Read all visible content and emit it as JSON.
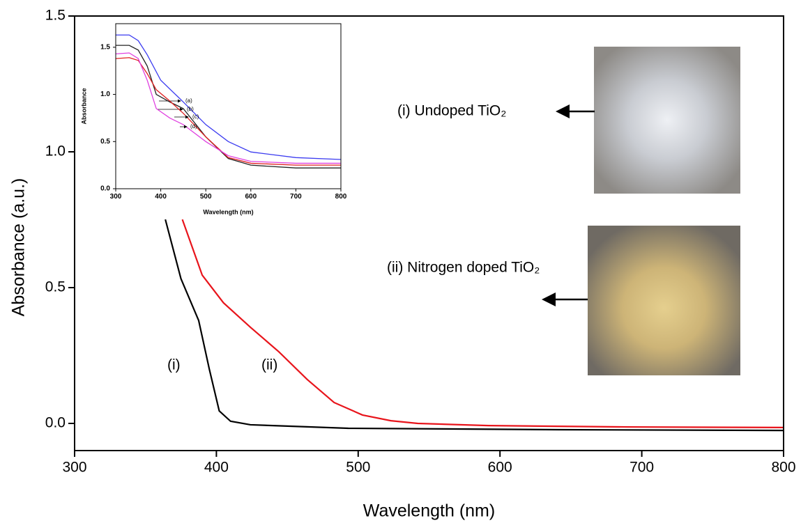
{
  "chart_data": [
    {
      "type": "line",
      "xlabel": "Wavelength (nm)",
      "ylabel": "Absorbance (a.u.)",
      "xlim": [
        300,
        800
      ],
      "ylim": [
        -0.1,
        1.5
      ],
      "xticks": [
        300,
        400,
        500,
        600,
        700,
        800
      ],
      "yticks": [
        {
          "value": 0,
          "label": "0.0"
        },
        0.5,
        {
          "value": 1,
          "label": "1.0"
        },
        {
          "value": 1.5,
          "label": "1.5"
        }
      ],
      "annotations": [
        "(i) Undoped TiO₂",
        "(ii) Nitrogen doped TiO₂"
      ],
      "series": [
        {
          "name": "(i)",
          "color": "#000000",
          "x": [
            364,
            375,
            387.5,
            395,
            402,
            410,
            424,
            493,
            641,
            800
          ],
          "values": [
            0.751,
            0.533,
            0.379,
            0.2,
            0.046,
            0.008,
            -0.005,
            -0.018,
            -0.023,
            -0.026
          ]
        },
        {
          "name": "(ii)",
          "color": "#e8141b",
          "x": [
            376,
            390,
            405,
            424,
            444,
            464,
            483,
            503,
            523,
            542,
            592,
            690,
            800
          ],
          "values": [
            0.751,
            0.546,
            0.444,
            0.354,
            0.264,
            0.162,
            0.077,
            0.031,
            0.01,
            0,
            -0.008,
            -0.013,
            -0.015
          ]
        }
      ]
    },
    {
      "type": "line",
      "xlabel": "Wavelength (nm)",
      "ylabel": "Absorbance",
      "xlim": [
        300,
        800
      ],
      "ylim": [
        0,
        1.75
      ],
      "xticks": [
        300,
        400,
        500,
        600,
        700,
        800
      ],
      "yticks": [
        {
          "value": 0,
          "label": "0.0"
        },
        0.5,
        {
          "value": 1,
          "label": "1.0"
        },
        {
          "value": 1.5,
          "label": "1.5"
        }
      ],
      "series": [
        {
          "name": "(a)",
          "color": "#3b3bf0",
          "x": [
            300,
            330,
            350,
            370,
            400,
            450,
            500,
            550,
            600,
            700,
            800
          ],
          "values": [
            1.63,
            1.63,
            1.57,
            1.42,
            1.15,
            0.92,
            0.68,
            0.5,
            0.39,
            0.33,
            0.31
          ]
        },
        {
          "name": "(b)",
          "color": "#222222",
          "x": [
            300,
            330,
            350,
            370,
            390,
            420,
            450,
            500,
            550,
            600,
            700,
            800
          ],
          "values": [
            1.52,
            1.52,
            1.47,
            1.3,
            1.0,
            0.92,
            0.85,
            0.55,
            0.32,
            0.25,
            0.22,
            0.22
          ]
        },
        {
          "name": "(c)",
          "color": "#e02020",
          "x": [
            300,
            330,
            350,
            370,
            390,
            420,
            450,
            500,
            550,
            600,
            700,
            800
          ],
          "values": [
            1.38,
            1.39,
            1.36,
            1.22,
            1.05,
            0.93,
            0.8,
            0.55,
            0.33,
            0.27,
            0.25,
            0.25
          ]
        },
        {
          "name": "(d)",
          "color": "#e040e0",
          "x": [
            300,
            330,
            350,
            370,
            390,
            420,
            450,
            500,
            550,
            600,
            700,
            800
          ],
          "values": [
            1.43,
            1.44,
            1.38,
            1.15,
            0.85,
            0.75,
            0.68,
            0.5,
            0.35,
            0.29,
            0.27,
            0.27
          ]
        }
      ]
    }
  ]
}
